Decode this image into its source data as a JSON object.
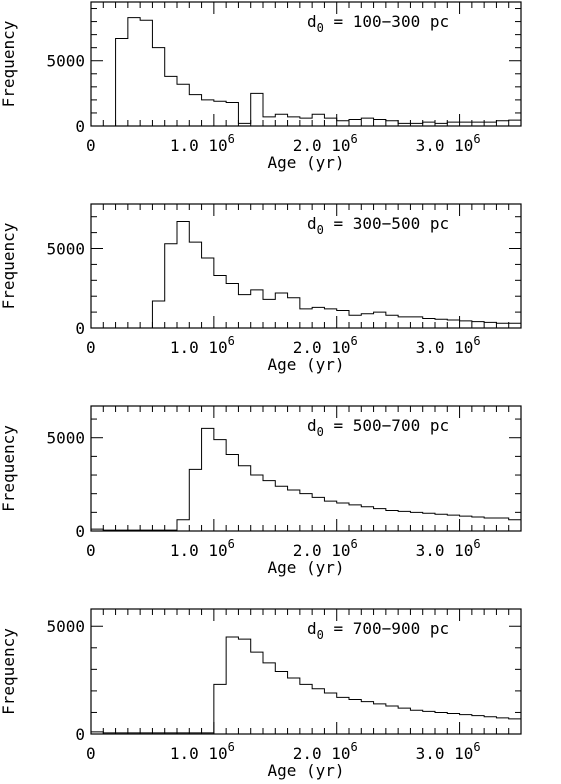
{
  "chart_data": [
    {
      "type": "bar",
      "annotation": "d0 = 100−300 pc",
      "annotation_base": "d",
      "annotation_sub": "0",
      "annotation_rest": " = 100−300 pc",
      "xlabel": "Age (yr)",
      "ylabel": "Frequency",
      "xlim": [
        0,
        3500000
      ],
      "ylim": [
        0,
        9500
      ],
      "x_ticks": [
        0,
        1000000,
        2000000,
        3000000
      ],
      "x_tick_labels": [
        {
          "mantissa": "0",
          "power": ""
        },
        {
          "mantissa": "1.0 10",
          "power": "6"
        },
        {
          "mantissa": "2.0 10",
          "power": "6"
        },
        {
          "mantissa": "3.0 10",
          "power": "6"
        }
      ],
      "y_ticks": [
        0,
        5000
      ],
      "y_tick_labels": [
        "0",
        "5000"
      ],
      "bin_width": 100000,
      "x_start": 0,
      "values": [
        0,
        0,
        6700,
        8300,
        8100,
        6000,
        3800,
        3200,
        2400,
        2000,
        1900,
        1800,
        200,
        2500,
        700,
        900,
        700,
        600,
        900,
        600,
        400,
        500,
        600,
        500,
        400,
        200,
        200,
        300,
        200,
        300,
        300,
        300,
        300,
        400,
        450
      ]
    },
    {
      "type": "bar",
      "annotation": "d0 = 300−500 pc",
      "annotation_base": "d",
      "annotation_sub": "0",
      "annotation_rest": " = 300−500 pc",
      "xlabel": "Age (yr)",
      "ylabel": "Frequency",
      "xlim": [
        0,
        3500000
      ],
      "ylim": [
        0,
        7800
      ],
      "x_ticks": [
        0,
        1000000,
        2000000,
        3000000
      ],
      "x_tick_labels": [
        {
          "mantissa": "0",
          "power": ""
        },
        {
          "mantissa": "1.0 10",
          "power": "6"
        },
        {
          "mantissa": "2.0 10",
          "power": "6"
        },
        {
          "mantissa": "3.0 10",
          "power": "6"
        }
      ],
      "y_ticks": [
        0,
        5000
      ],
      "y_tick_labels": [
        "0",
        "5000"
      ],
      "bin_width": 100000,
      "x_start": 0,
      "values": [
        0,
        0,
        0,
        0,
        0,
        1700,
        5300,
        6700,
        5400,
        4400,
        3300,
        2800,
        2100,
        2400,
        1800,
        2200,
        1900,
        1200,
        1300,
        1200,
        1100,
        800,
        900,
        1000,
        800,
        700,
        700,
        600,
        550,
        500,
        450,
        400,
        350,
        300,
        300
      ]
    },
    {
      "type": "bar",
      "annotation": "d0 = 500−700 pc",
      "annotation_base": "d",
      "annotation_sub": "0",
      "annotation_rest": " = 500−700 pc",
      "xlabel": "Age (yr)",
      "ylabel": "Frequency",
      "xlim": [
        0,
        3500000
      ],
      "ylim": [
        0,
        6700
      ],
      "x_ticks": [
        0,
        1000000,
        2000000,
        3000000
      ],
      "x_tick_labels": [
        {
          "mantissa": "0",
          "power": ""
        },
        {
          "mantissa": "1.0 10",
          "power": "6"
        },
        {
          "mantissa": "2.0 10",
          "power": "6"
        },
        {
          "mantissa": "3.0 10",
          "power": "6"
        }
      ],
      "y_ticks": [
        0,
        5000
      ],
      "y_tick_labels": [
        "0",
        "5000"
      ],
      "bin_width": 100000,
      "x_start": 0,
      "values": [
        100,
        50,
        50,
        50,
        50,
        50,
        50,
        600,
        3300,
        5500,
        4900,
        4100,
        3500,
        3000,
        2700,
        2400,
        2200,
        2000,
        1800,
        1600,
        1500,
        1400,
        1300,
        1200,
        1100,
        1050,
        1000,
        950,
        900,
        850,
        800,
        750,
        700,
        700,
        600
      ]
    },
    {
      "type": "bar",
      "annotation": "d0 = 700−900 pc",
      "annotation_base": "d",
      "annotation_sub": "0",
      "annotation_rest": " = 700−900 pc",
      "xlabel": "Age (yr)",
      "ylabel": "Frequency",
      "xlim": [
        0,
        3500000
      ],
      "ylim": [
        0,
        5800
      ],
      "x_ticks": [
        0,
        1000000,
        2000000,
        3000000
      ],
      "x_tick_labels": [
        {
          "mantissa": "0",
          "power": ""
        },
        {
          "mantissa": "1.0 10",
          "power": "6"
        },
        {
          "mantissa": "2.0 10",
          "power": "6"
        },
        {
          "mantissa": "3.0 10",
          "power": "6"
        }
      ],
      "y_ticks": [
        0,
        5000
      ],
      "y_tick_labels": [
        "0",
        "5000"
      ],
      "bin_width": 100000,
      "x_start": 0,
      "values": [
        100,
        50,
        50,
        50,
        50,
        50,
        50,
        50,
        50,
        50,
        2300,
        4500,
        4400,
        3800,
        3300,
        2900,
        2600,
        2300,
        2100,
        1900,
        1700,
        1600,
        1500,
        1400,
        1300,
        1200,
        1100,
        1050,
        1000,
        950,
        900,
        850,
        800,
        750,
        700
      ]
    }
  ]
}
